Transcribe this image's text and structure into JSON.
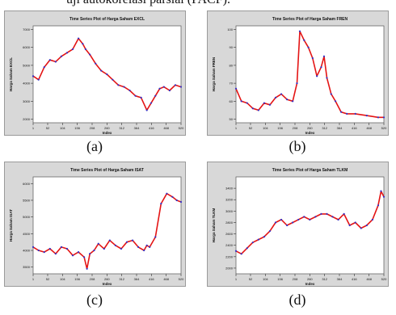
{
  "header": {
    "text": "uji autokorelasi parsial (PACF)."
  },
  "captions": [
    "(a)",
    "(b)",
    "(c)",
    "(d)"
  ],
  "colors": {
    "series": "#e41414",
    "marker": "#3232c8",
    "panel_bg": "#d6d6d6",
    "plot_bg": "#ffffff"
  },
  "chart_data": [
    {
      "type": "line",
      "title": "Time Series Plot of Harga Saham EXCL",
      "xlabel": "Index",
      "ylabel": "Harga Saham EXCL",
      "xticks": [
        1,
        52,
        104,
        156,
        208,
        260,
        312,
        364,
        416,
        468,
        520
      ],
      "yticks": [
        2000,
        3000,
        4000,
        5000,
        6000,
        7000
      ],
      "ylim": [
        1800,
        7200
      ],
      "x": [
        1,
        20,
        40,
        60,
        80,
        100,
        120,
        140,
        160,
        175,
        185,
        200,
        220,
        240,
        260,
        280,
        300,
        320,
        340,
        360,
        380,
        400,
        415,
        430,
        445,
        460,
        480,
        500,
        520
      ],
      "values": [
        4400,
        4200,
        4900,
        5300,
        5200,
        5500,
        5700,
        5900,
        6500,
        6200,
        5900,
        5600,
        5100,
        4700,
        4500,
        4200,
        3900,
        3800,
        3600,
        3300,
        3200,
        2500,
        2900,
        3300,
        3700,
        3800,
        3600,
        3900,
        3800
      ]
    },
    {
      "type": "line",
      "title": "Time Series Plot of Harga Saham FREN",
      "xlabel": "Index",
      "ylabel": "Harga Saham FREN",
      "xticks": [
        1,
        52,
        104,
        156,
        208,
        260,
        312,
        364,
        416,
        468,
        520
      ],
      "yticks": [
        50,
        60,
        70,
        80,
        90,
        100
      ],
      "ylim": [
        48,
        102
      ],
      "x": [
        1,
        20,
        40,
        60,
        80,
        100,
        120,
        140,
        160,
        180,
        200,
        215,
        225,
        240,
        255,
        270,
        285,
        300,
        310,
        320,
        335,
        350,
        370,
        390,
        420,
        460,
        500,
        520
      ],
      "values": [
        67,
        60,
        59,
        56,
        55,
        59,
        58,
        62,
        64,
        61,
        60,
        70,
        99,
        94,
        90,
        84,
        74,
        79,
        85,
        73,
        64,
        60,
        54,
        53,
        53,
        52,
        51,
        51
      ]
    },
    {
      "type": "line",
      "title": "Time Series Plot of Harga Saham ISAT",
      "xlabel": "Index",
      "ylabel": "Harga Saham ISAT",
      "xticks": [
        1,
        52,
        104,
        156,
        208,
        260,
        312,
        364,
        416,
        468,
        520
      ],
      "yticks": [
        3500,
        4000,
        4500,
        5000,
        5500,
        6000
      ],
      "ylim": [
        3300,
        6200
      ],
      "x": [
        1,
        20,
        40,
        60,
        80,
        100,
        120,
        140,
        160,
        180,
        190,
        200,
        215,
        230,
        250,
        270,
        290,
        310,
        330,
        350,
        370,
        390,
        400,
        410,
        430,
        450,
        470,
        490,
        505,
        520
      ],
      "values": [
        4100,
        4000,
        3950,
        4050,
        3900,
        4100,
        4050,
        3850,
        3950,
        3800,
        3450,
        3900,
        4000,
        4200,
        4050,
        4300,
        4150,
        4050,
        4250,
        4300,
        4100,
        4000,
        4150,
        4100,
        4400,
        5400,
        5700,
        5600,
        5500,
        5450
      ]
    },
    {
      "type": "line",
      "title": "Time Series Plot of Harga Saham TLKM",
      "xlabel": "Index",
      "ylabel": "Harga Saham TLKM",
      "xticks": [
        1,
        52,
        104,
        156,
        208,
        260,
        312,
        364,
        416,
        468,
        520
      ],
      "yticks": [
        2000,
        2200,
        2400,
        2600,
        2800,
        3000,
        3200,
        3400
      ],
      "ylim": [
        1900,
        3600
      ],
      "x": [
        1,
        20,
        40,
        60,
        80,
        100,
        120,
        140,
        160,
        180,
        200,
        220,
        240,
        260,
        280,
        300,
        320,
        340,
        360,
        380,
        400,
        420,
        440,
        460,
        480,
        500,
        510,
        520
      ],
      "values": [
        2300,
        2250,
        2350,
        2450,
        2500,
        2550,
        2650,
        2800,
        2850,
        2750,
        2800,
        2850,
        2900,
        2850,
        2900,
        2950,
        2950,
        2900,
        2850,
        2950,
        2750,
        2800,
        2700,
        2750,
        2850,
        3100,
        3350,
        3250
      ]
    }
  ]
}
